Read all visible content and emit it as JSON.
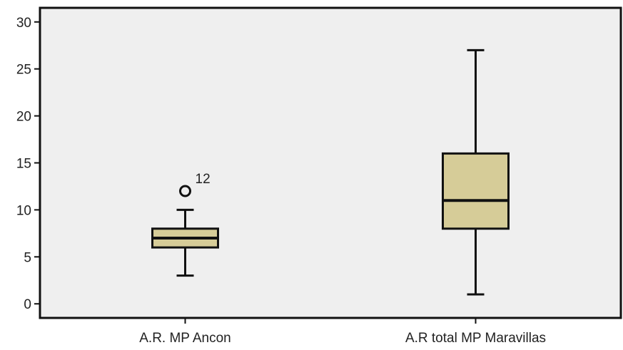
{
  "chart_data": {
    "type": "boxplot",
    "title": "",
    "xlabel": "",
    "ylabel": "",
    "ylim": [
      -1.5,
      31.5
    ],
    "yticks": [
      0,
      5,
      10,
      15,
      20,
      25,
      30
    ],
    "grid": false,
    "categories": [
      "A.R. MP Ancon",
      "A.R total MP Maravillas"
    ],
    "boxes": [
      {
        "min": 3,
        "q1": 6,
        "median": 7,
        "q3": 8,
        "max": 10,
        "outliers": [
          {
            "value": 12,
            "label": "12"
          }
        ]
      },
      {
        "min": 1,
        "q1": 8,
        "median": 11,
        "q3": 16,
        "max": 27,
        "outliers": []
      }
    ],
    "colors": {
      "box_fill": "#d6cc98",
      "stroke": "#111111",
      "plot_bg": "#efefef"
    }
  }
}
